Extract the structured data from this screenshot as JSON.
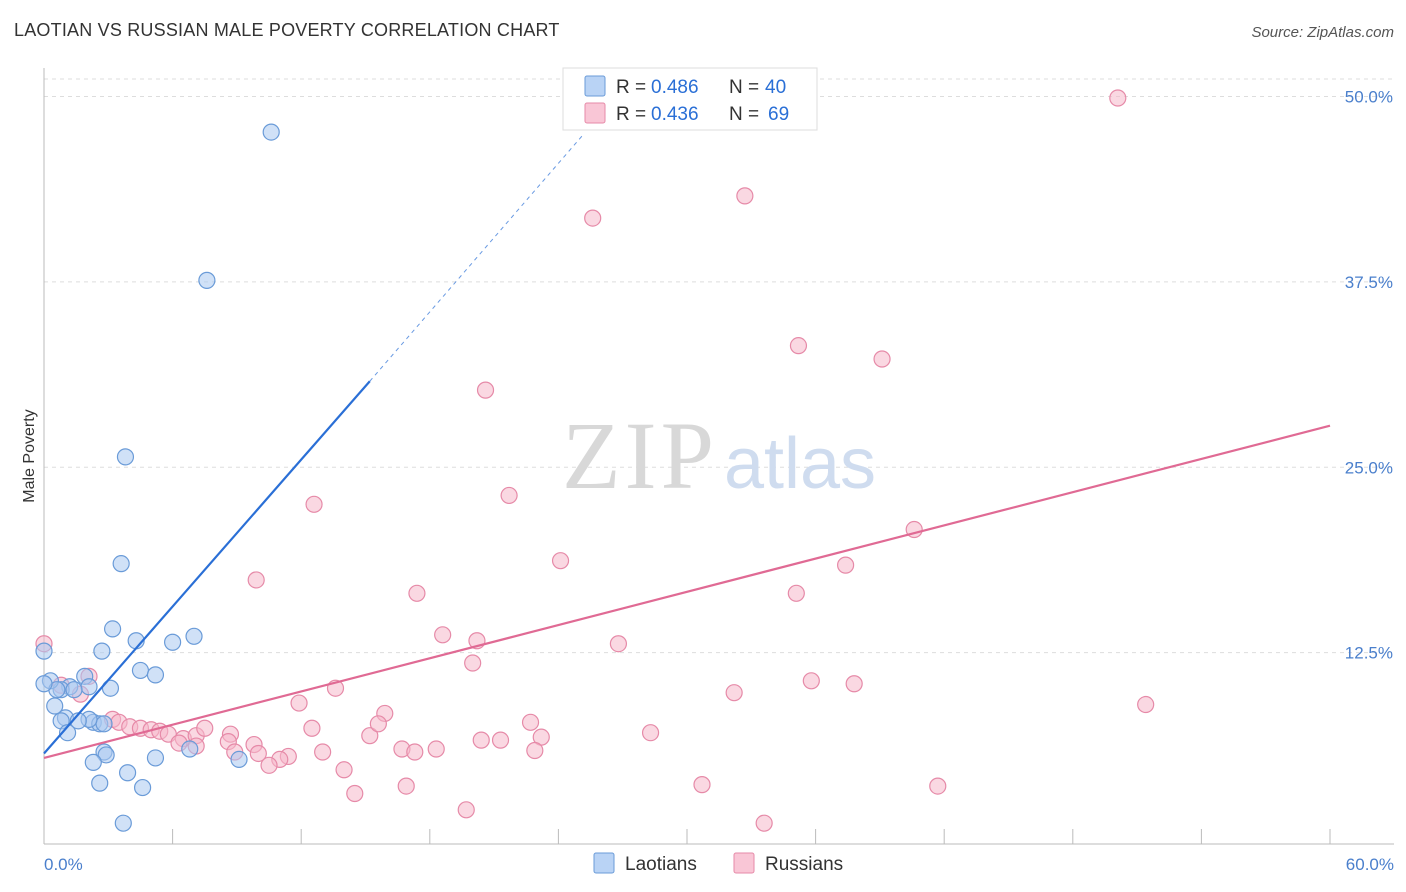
{
  "title": "LAOTIAN VS RUSSIAN MALE POVERTY CORRELATION CHART",
  "source": "Source: ZipAtlas.com",
  "watermark": {
    "zip": "ZIP",
    "atlas": "atlas"
  },
  "colors": {
    "laotians_fill": "#a9c8f0",
    "laotians_stroke": "#6a9bd8",
    "laotians_line": "#2a6fd6",
    "russians_fill": "#f5b8cb",
    "russians_stroke": "#e68aa8",
    "russians_line": "#e06a94",
    "tick_text": "#4a7fcc",
    "grid": "#dddddd"
  },
  "legend_top": {
    "rows": [
      {
        "r_label": "R =",
        "r_value": "0.486",
        "n_label": "N =",
        "n_value": "40"
      },
      {
        "r_label": "R =",
        "r_value": "0.436",
        "n_label": "N =",
        "n_value": "69"
      }
    ]
  },
  "legend_bottom": [
    "Laotians",
    "Russians"
  ],
  "chart_data": {
    "type": "scatter",
    "title": "LAOTIAN VS RUSSIAN MALE POVERTY CORRELATION CHART",
    "xlabel": "",
    "ylabel": "Male Poverty",
    "xlim": [
      0,
      60
    ],
    "ylim": [
      0,
      50
    ],
    "x_tick_labels": [
      "0.0%",
      "60.0%"
    ],
    "y_ticks": [
      12.5,
      25.0,
      37.5,
      50.0
    ],
    "y_tick_labels": [
      "12.5%",
      "25.0%",
      "37.5%",
      "50.0%"
    ],
    "grid": true,
    "legend_position": "bottom-center",
    "series": [
      {
        "name": "Laotians",
        "r": 0.486,
        "n": 40,
        "trend": {
          "x0": 0,
          "y0": 5.7,
          "x1": 15.2,
          "y1": 30.8,
          "dash_to_x": 25.2,
          "dash_to_y": 47.5
        },
        "points": [
          [
            10.6,
            47.6
          ],
          [
            7.6,
            37.6
          ],
          [
            3.8,
            25.7
          ],
          [
            3.6,
            18.5
          ],
          [
            3.2,
            14.1
          ],
          [
            4.3,
            13.3
          ],
          [
            6.0,
            13.2
          ],
          [
            7.0,
            13.6
          ],
          [
            2.7,
            12.6
          ],
          [
            0.0,
            12.6
          ],
          [
            4.5,
            11.3
          ],
          [
            5.2,
            11.0
          ],
          [
            1.9,
            10.9
          ],
          [
            2.1,
            10.2
          ],
          [
            3.1,
            10.1
          ],
          [
            1.2,
            10.2
          ],
          [
            0.8,
            10.0
          ],
          [
            0.3,
            10.6
          ],
          [
            0.6,
            10.0
          ],
          [
            1.4,
            10.0
          ],
          [
            0.5,
            8.9
          ],
          [
            1.0,
            8.1
          ],
          [
            0.8,
            7.9
          ],
          [
            2.3,
            7.8
          ],
          [
            2.6,
            7.7
          ],
          [
            2.8,
            7.7
          ],
          [
            2.1,
            8.0
          ],
          [
            1.1,
            7.1
          ],
          [
            2.8,
            5.8
          ],
          [
            2.9,
            5.6
          ],
          [
            6.8,
            6.0
          ],
          [
            5.2,
            5.4
          ],
          [
            9.1,
            5.3
          ],
          [
            2.3,
            5.1
          ],
          [
            3.9,
            4.4
          ],
          [
            2.6,
            3.7
          ],
          [
            4.6,
            3.4
          ],
          [
            3.7,
            1.0
          ],
          [
            0.0,
            10.4
          ],
          [
            1.6,
            7.9
          ]
        ]
      },
      {
        "name": "Russians",
        "r": 0.436,
        "n": 69,
        "trend": {
          "x0": 0,
          "y0": 5.4,
          "x1": 60,
          "y1": 27.8
        },
        "points": [
          [
            50.1,
            49.9
          ],
          [
            32.7,
            43.3
          ],
          [
            25.6,
            41.8
          ],
          [
            35.2,
            33.2
          ],
          [
            39.1,
            32.3
          ],
          [
            20.6,
            30.2
          ],
          [
            12.6,
            22.5
          ],
          [
            21.7,
            23.1
          ],
          [
            40.6,
            20.8
          ],
          [
            24.1,
            18.7
          ],
          [
            37.4,
            18.4
          ],
          [
            9.9,
            17.4
          ],
          [
            35.1,
            16.5
          ],
          [
            17.4,
            16.5
          ],
          [
            18.6,
            13.7
          ],
          [
            20.2,
            13.3
          ],
          [
            26.8,
            13.1
          ],
          [
            20.0,
            11.8
          ],
          [
            35.8,
            10.6
          ],
          [
            37.8,
            10.4
          ],
          [
            13.6,
            10.1
          ],
          [
            32.2,
            9.8
          ],
          [
            51.4,
            9.0
          ],
          [
            11.9,
            9.1
          ],
          [
            15.9,
            8.4
          ],
          [
            0.0,
            13.1
          ],
          [
            0.8,
            10.3
          ],
          [
            2.1,
            10.9
          ],
          [
            1.7,
            9.7
          ],
          [
            3.2,
            8.0
          ],
          [
            3.5,
            7.8
          ],
          [
            4.0,
            7.5
          ],
          [
            4.5,
            7.4
          ],
          [
            5.0,
            7.3
          ],
          [
            5.4,
            7.2
          ],
          [
            5.8,
            7.0
          ],
          [
            6.5,
            6.7
          ],
          [
            7.1,
            6.9
          ],
          [
            7.5,
            7.4
          ],
          [
            8.7,
            7.0
          ],
          [
            9.8,
            6.3
          ],
          [
            10.0,
            5.7
          ],
          [
            8.6,
            6.5
          ],
          [
            6.3,
            6.4
          ],
          [
            11.4,
            5.5
          ],
          [
            11.0,
            5.3
          ],
          [
            12.5,
            7.4
          ],
          [
            13.0,
            5.8
          ],
          [
            15.2,
            6.9
          ],
          [
            15.6,
            7.7
          ],
          [
            16.7,
            6.0
          ],
          [
            17.3,
            5.8
          ],
          [
            18.3,
            6.0
          ],
          [
            21.3,
            6.6
          ],
          [
            22.7,
            7.8
          ],
          [
            23.2,
            6.8
          ],
          [
            22.9,
            5.9
          ],
          [
            28.3,
            7.1
          ],
          [
            10.5,
            4.9
          ],
          [
            14.0,
            4.6
          ],
          [
            14.5,
            3.0
          ],
          [
            16.9,
            3.5
          ],
          [
            19.7,
            1.9
          ],
          [
            30.7,
            3.6
          ],
          [
            33.6,
            1.0
          ],
          [
            41.7,
            3.5
          ],
          [
            7.1,
            6.2
          ],
          [
            8.9,
            5.8
          ],
          [
            20.4,
            6.6
          ]
        ]
      }
    ]
  }
}
